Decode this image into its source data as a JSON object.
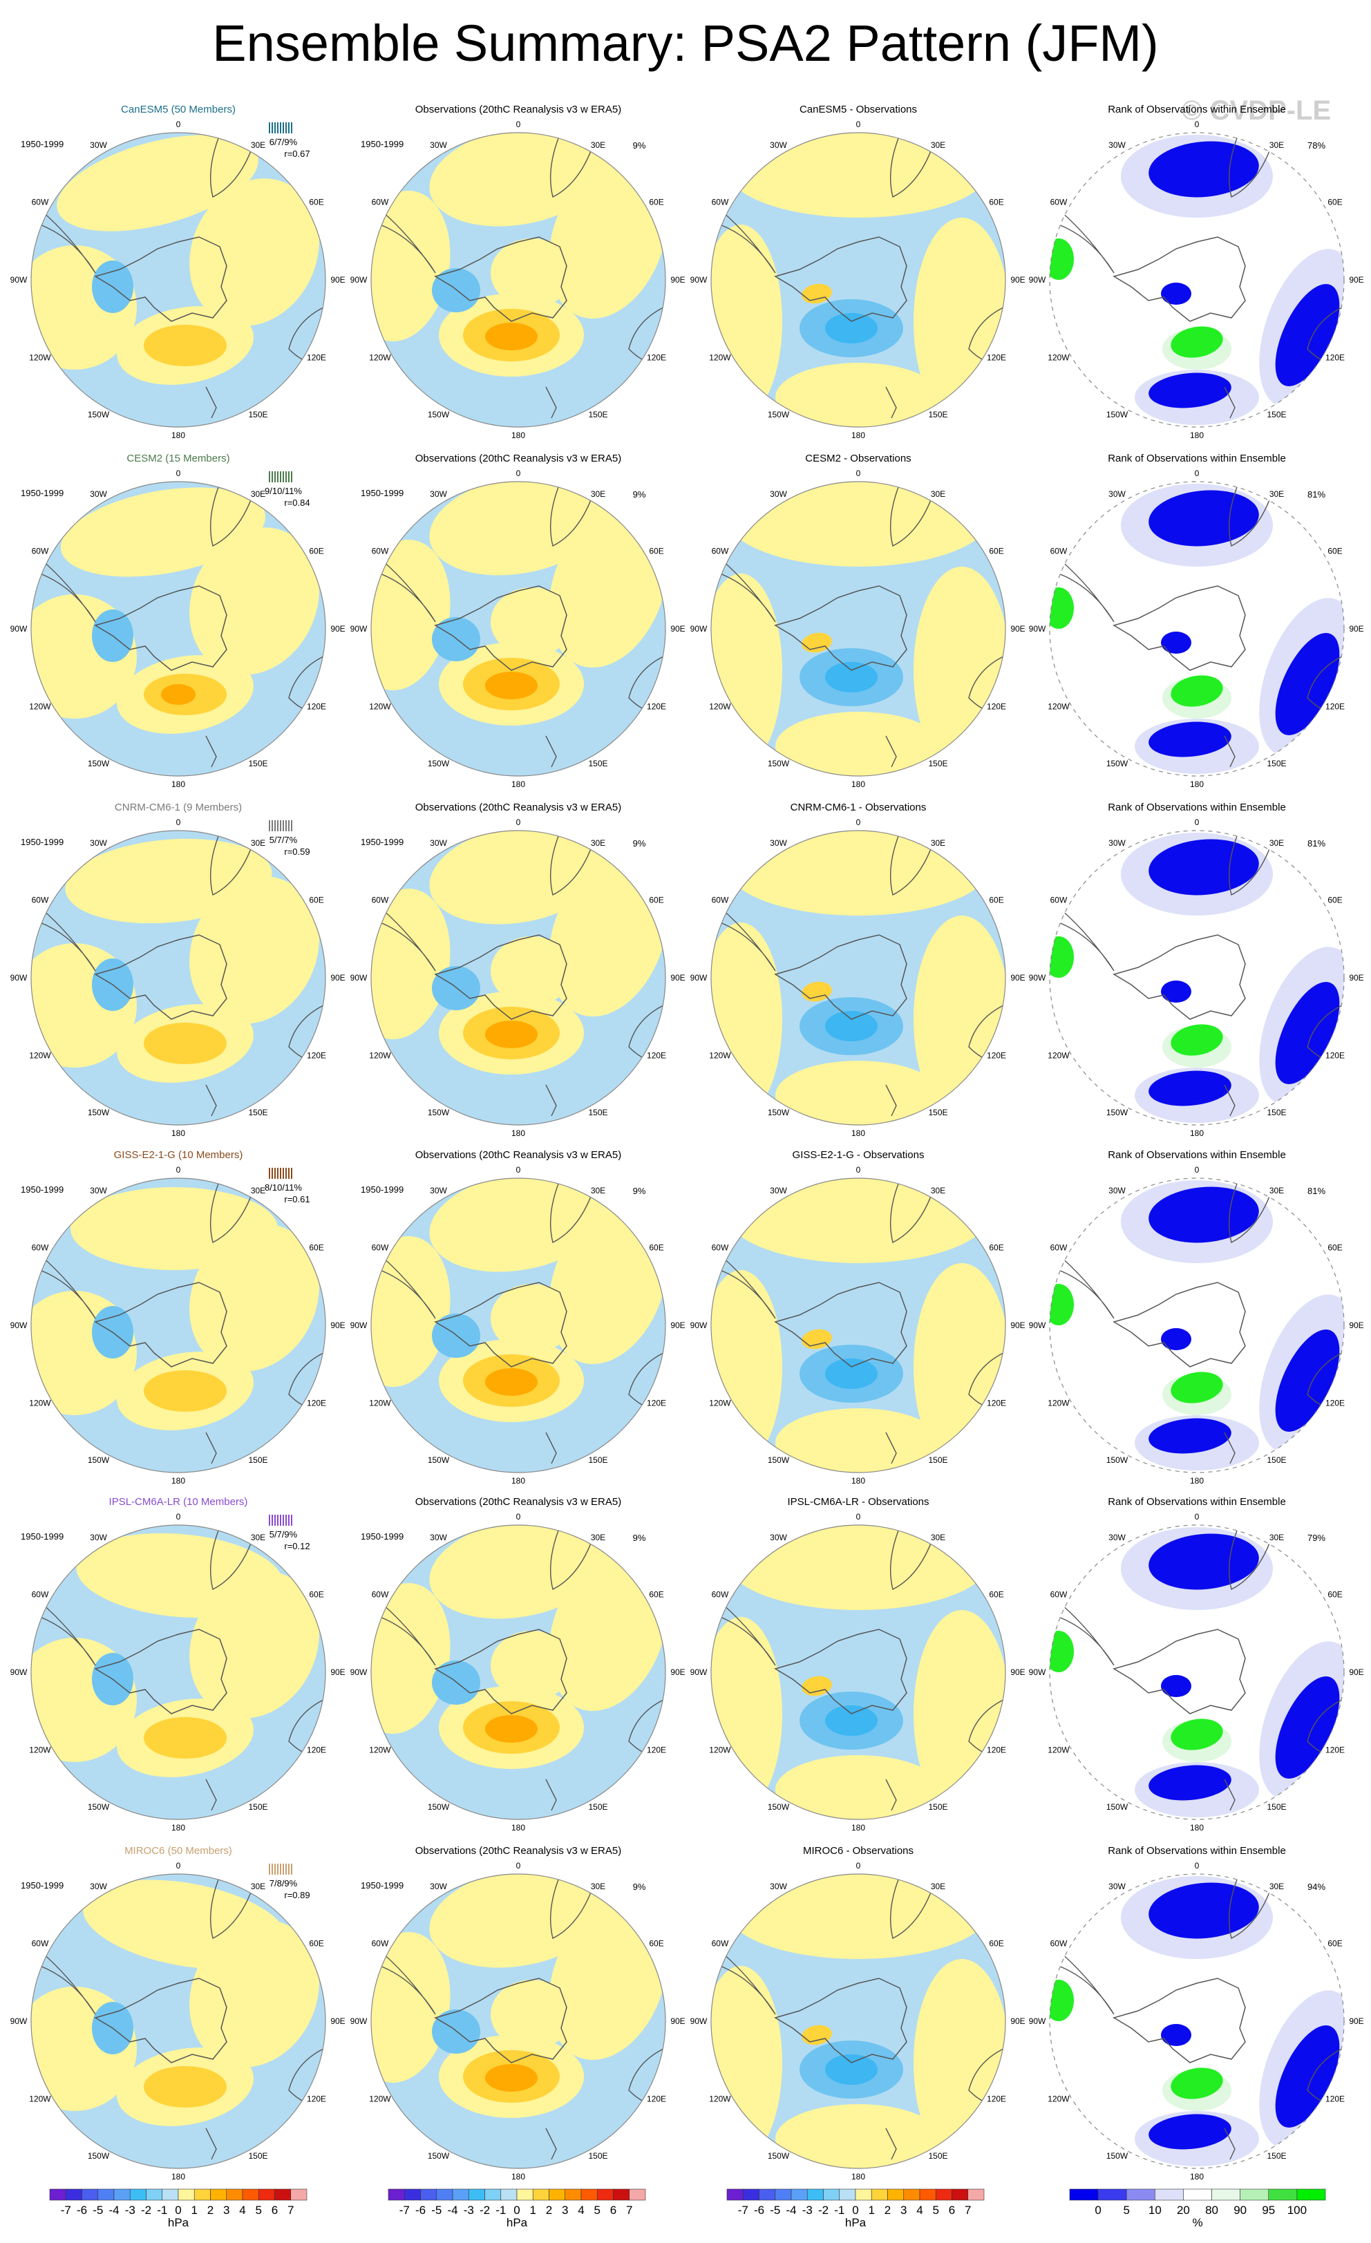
{
  "title": "Ensemble Summary: PSA2 Pattern (JFM)",
  "watermark": "© CVDP-LE",
  "period": "1950-1999",
  "obs_title": "Observations (20thC Reanalysis v3 w ERA5)",
  "obs_pct": "9%",
  "rank_title": "Rank of Observations within Ensemble",
  "lon_labels": [
    "0",
    "30E",
    "60E",
    "90E",
    "120E",
    "150E",
    "180",
    "150W",
    "120W",
    "90W",
    "60W",
    "30W"
  ],
  "colors": {
    "neg4": "#1e8fe6",
    "neg3": "#3db6f2",
    "neg2": "#6fc3f0",
    "neg1": "#b3dcf2",
    "pos1": "#fff59a",
    "pos2": "#ffd33a",
    "pos3": "#ffaa00",
    "pos4": "#ff7f00",
    "rank_blue": "#0a0aee",
    "rank_lightblue": "#dde0f8",
    "rank_green": "#22ee22",
    "rank_lightgreen": "#dff8df"
  },
  "chart_data": [
    {
      "type": "heatmap",
      "row": 0,
      "model": "CanESM5",
      "label": "CanESM5 (50 Members)",
      "label_color": "#1a6f8a",
      "stats": "6/7/9%",
      "r": "r=0.67",
      "diff_title": "CanESM5 - Observations",
      "rank_pct": "78%"
    },
    {
      "type": "heatmap",
      "row": 1,
      "model": "CESM2",
      "label": "CESM2 (15 Members)",
      "label_color": "#4c7a4c",
      "stats": "9/10/11%",
      "r": "r=0.84",
      "diff_title": "CESM2 - Observations",
      "rank_pct": "81%"
    },
    {
      "type": "heatmap",
      "row": 2,
      "model": "CNRM-CM6-1",
      "label": "CNRM-CM6-1 (9 Members)",
      "label_color": "#7a7a7a",
      "stats": "5/7/7%",
      "r": "r=0.59",
      "diff_title": "CNRM-CM6-1 - Observations",
      "rank_pct": "81%"
    },
    {
      "type": "heatmap",
      "row": 3,
      "model": "GISS-E2-1-G",
      "label": "GISS-E2-1-G (10 Members)",
      "label_color": "#8a4a1a",
      "stats": "8/10/11%",
      "r": "r=0.61",
      "diff_title": "GISS-E2-1-G - Observations",
      "rank_pct": "81%"
    },
    {
      "type": "heatmap",
      "row": 4,
      "model": "IPSL-CM6A-LR",
      "label": "IPSL-CM6A-LR (10 Members)",
      "label_color": "#8a4ad0",
      "stats": "5/7/9%",
      "r": "r=0.12",
      "diff_title": "IPSL-CM6A-LR - Observations",
      "rank_pct": "79%"
    },
    {
      "type": "heatmap",
      "row": 5,
      "model": "MIROC6",
      "label": "MIROC6 (50 Members)",
      "label_color": "#c8a070",
      "stats": "7/8/9%",
      "r": "r=0.89",
      "diff_title": "MIROC6 - Observations",
      "rank_pct": "94%"
    }
  ],
  "colorbars": {
    "pattern": {
      "unit": "hPa",
      "ticks": [
        "-7",
        "-6",
        "-5",
        "-4",
        "-3",
        "-2",
        "-1",
        "0",
        "1",
        "2",
        "3",
        "4",
        "5",
        "6",
        "7"
      ],
      "colors": [
        "#6b1fd1",
        "#3a2ee0",
        "#4a5ef0",
        "#4f7ff5",
        "#5ba0f7",
        "#3dbdf5",
        "#7fd0f5",
        "#b9e0f4",
        "#fff59a",
        "#ffd33a",
        "#ffb300",
        "#ff8c00",
        "#ff5a00",
        "#ee2a10",
        "#cc1010",
        "#f5a8a8"
      ]
    },
    "rank": {
      "unit": "%",
      "ticks": [
        "0",
        "5",
        "10",
        "20",
        "80",
        "90",
        "95",
        "100"
      ],
      "colors": [
        "#0000ee",
        "#3a3aef",
        "#8a8af2",
        "#dde0f8",
        "#ffffff",
        "#e8f8e8",
        "#b6f0b6",
        "#40e040",
        "#00ee00"
      ]
    }
  }
}
